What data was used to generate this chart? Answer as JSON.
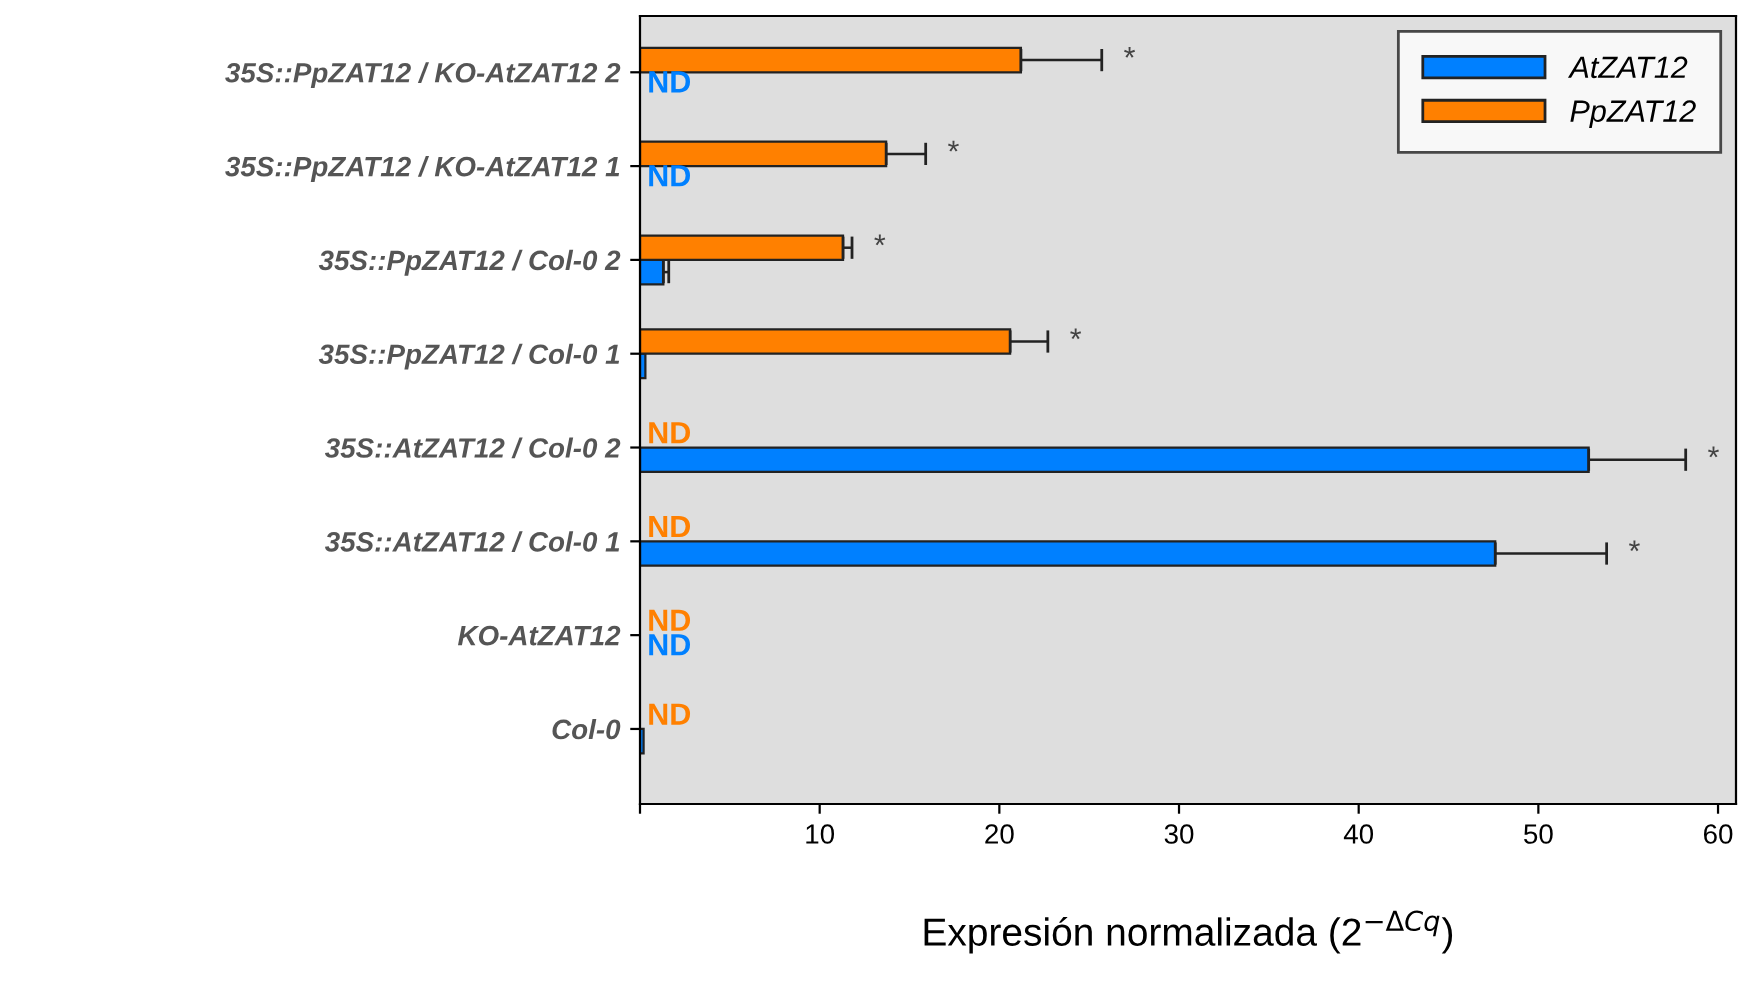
{
  "chart_data": {
    "type": "bar",
    "orientation": "horizontal",
    "categories": [
      "35S::PpZAT12 / KO-AtZAT12 2",
      "35S::PpZAT12 / KO-AtZAT12 1",
      "35S::PpZAT12 / Col-0 2",
      "35S::PpZAT12 / Col-0 1",
      "35S::AtZAT12 / Col-0 2",
      "35S::AtZAT12 / Col-0 1",
      "KO-AtZAT12",
      "Col-0"
    ],
    "series": [
      {
        "name": "AtZAT12",
        "color": "#0080ff",
        "values": [
          null,
          null,
          1.3,
          0.3,
          52.8,
          47.6,
          null,
          0.2
        ],
        "errors": [
          null,
          null,
          [
            1.3,
            1.6
          ],
          null,
          [
            52.8,
            58.2
          ],
          [
            47.6,
            53.8
          ],
          null,
          null
        ],
        "value_labels": [
          "ND",
          "ND",
          null,
          null,
          null,
          null,
          "ND",
          null
        ]
      },
      {
        "name": "PpZAT12",
        "color": "#ff8000",
        "values": [
          21.2,
          13.7,
          11.3,
          20.6,
          null,
          null,
          null,
          null
        ],
        "errors": [
          [
            21.2,
            25.7
          ],
          [
            13.7,
            15.9
          ],
          [
            11.3,
            11.8
          ],
          [
            20.6,
            22.7
          ],
          null,
          null,
          null,
          null
        ],
        "value_labels": [
          null,
          null,
          null,
          null,
          "ND",
          "ND",
          "ND",
          "ND"
        ]
      }
    ],
    "xlim": [
      0,
      61
    ],
    "xticks": [
      {
        "value": 0,
        "label": null
      },
      10,
      20,
      30,
      40,
      50,
      60
    ],
    "xlabel": "Expresión normalizada (2$^{−ΔCq}$)",
    "annotations": [
      "*",
      "*",
      "*",
      "*",
      "*",
      "*"
    ],
    "grid": false,
    "legend": "top right"
  }
}
